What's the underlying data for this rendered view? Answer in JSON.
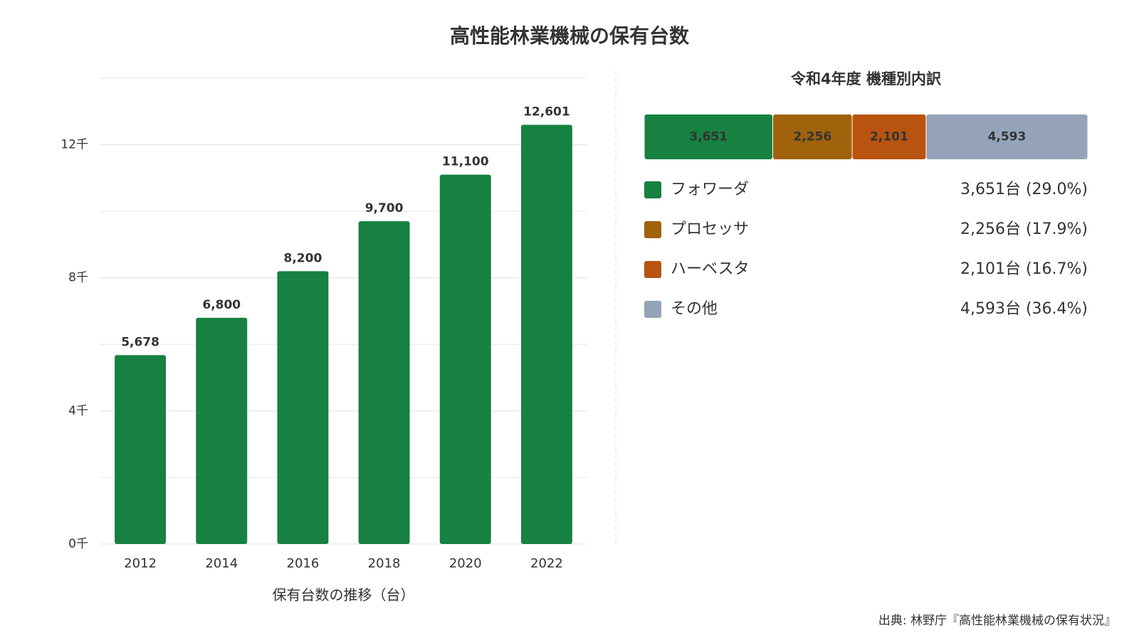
{
  "title": "高性能林業機械の保有台数",
  "source": "出典: 林野庁『高性能林業機械の保有状況』",
  "chart_data": [
    {
      "type": "bar",
      "x_label": "保有台数の推移（台）",
      "categories": [
        "2012",
        "2014",
        "2016",
        "2018",
        "2020",
        "2022"
      ],
      "values": [
        5678,
        6800,
        8200,
        9700,
        11100,
        12601
      ],
      "value_labels": [
        "5,678",
        "6,800",
        "8,200",
        "9,700",
        "11,100",
        "12,601"
      ],
      "color": "#168140",
      "ylim": [
        0,
        14000
      ],
      "yticks": [
        {
          "value": 0,
          "label": "0千"
        },
        {
          "value": 4000,
          "label": "4千"
        },
        {
          "value": 8000,
          "label": "8千"
        },
        {
          "value": 12000,
          "label": "12千"
        }
      ],
      "minor_yticks": [
        2000,
        6000,
        10000,
        14000
      ],
      "grid": true
    },
    {
      "type": "stacked-bar",
      "title": "令和4年度 機種別内訳",
      "series": [
        {
          "name": "フォワーダ",
          "color": "#168140",
          "values": [
            3651
          ],
          "value_labels": [
            "3,651"
          ],
          "legend_label": "3,651台 (29.0%)"
        },
        {
          "name": "プロセッサ",
          "color": "#a0620a",
          "values": [
            2256
          ],
          "value_labels": [
            "2,256"
          ],
          "legend_label": "2,256台 (17.9%)"
        },
        {
          "name": "ハーベスタ",
          "color": "#b8540f",
          "values": [
            2101
          ],
          "value_labels": [
            "2,101"
          ],
          "legend_label": "2,101台 (16.7%)"
        },
        {
          "name": "その他",
          "color": "#94a3b8",
          "values": [
            4593
          ],
          "value_labels": [
            "4,593"
          ],
          "legend_label": "4,593台 (36.4%)"
        }
      ]
    }
  ]
}
